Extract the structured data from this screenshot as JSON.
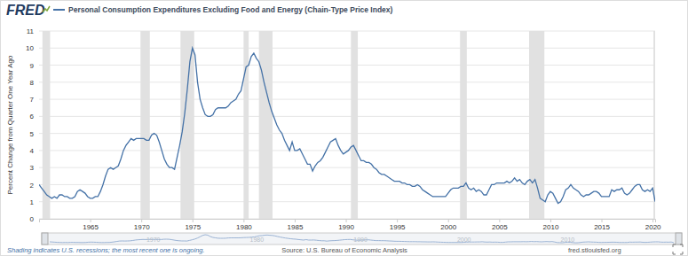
{
  "chart_data": {
    "type": "line",
    "logo": "FRED",
    "y_label": "Percent Change from Quarter One Year Ago",
    "x": [
      1960,
      1960.25,
      1960.5,
      1960.75,
      1961,
      1961.25,
      1961.5,
      1961.75,
      1962,
      1962.25,
      1962.5,
      1962.75,
      1963,
      1963.25,
      1963.5,
      1963.75,
      1964,
      1964.25,
      1964.5,
      1964.75,
      1965,
      1965.25,
      1965.5,
      1965.75,
      1966,
      1966.25,
      1966.5,
      1966.75,
      1967,
      1967.25,
      1967.5,
      1967.75,
      1968,
      1968.25,
      1968.5,
      1968.75,
      1969,
      1969.25,
      1969.5,
      1969.75,
      1970,
      1970.25,
      1970.5,
      1970.75,
      1971,
      1971.25,
      1971.5,
      1971.75,
      1972,
      1972.25,
      1972.5,
      1972.75,
      1973,
      1973.25,
      1973.5,
      1973.75,
      1974,
      1974.25,
      1974.5,
      1974.75,
      1975,
      1975.25,
      1975.5,
      1975.75,
      1976,
      1976.25,
      1976.5,
      1976.75,
      1977,
      1977.25,
      1977.5,
      1977.75,
      1978,
      1978.25,
      1978.5,
      1978.75,
      1979,
      1979.25,
      1979.5,
      1979.75,
      1980,
      1980.25,
      1980.5,
      1980.75,
      1981,
      1981.25,
      1981.5,
      1981.75,
      1982,
      1982.25,
      1982.5,
      1982.75,
      1983,
      1983.25,
      1983.5,
      1983.75,
      1984,
      1984.25,
      1984.5,
      1984.75,
      1985,
      1985.25,
      1985.5,
      1985.75,
      1986,
      1986.25,
      1986.5,
      1986.75,
      1987,
      1987.25,
      1987.5,
      1987.75,
      1988,
      1988.25,
      1988.5,
      1988.75,
      1989,
      1989.25,
      1989.5,
      1989.75,
      1990,
      1990.25,
      1990.5,
      1990.75,
      1991,
      1991.25,
      1991.5,
      1991.75,
      1992,
      1992.25,
      1992.5,
      1992.75,
      1993,
      1993.25,
      1993.5,
      1993.75,
      1994,
      1994.25,
      1994.5,
      1994.75,
      1995,
      1995.25,
      1995.5,
      1995.75,
      1996,
      1996.25,
      1996.5,
      1996.75,
      1997,
      1997.25,
      1997.5,
      1997.75,
      1998,
      1998.25,
      1998.5,
      1998.75,
      1999,
      1999.25,
      1999.5,
      1999.75,
      2000,
      2000.25,
      2000.5,
      2000.75,
      2001,
      2001.25,
      2001.5,
      2001.75,
      2002,
      2002.25,
      2002.5,
      2002.75,
      2003,
      2003.25,
      2003.5,
      2003.75,
      2004,
      2004.25,
      2004.5,
      2004.75,
      2005,
      2005.25,
      2005.5,
      2005.75,
      2006,
      2006.25,
      2006.5,
      2006.75,
      2007,
      2007.25,
      2007.5,
      2007.75,
      2008,
      2008.25,
      2008.5,
      2008.75,
      2009,
      2009.25,
      2009.5,
      2009.75,
      2010,
      2010.25,
      2010.5,
      2010.75,
      2011,
      2011.25,
      2011.5,
      2011.75,
      2012,
      2012.25,
      2012.5,
      2012.75,
      2013,
      2013.25,
      2013.5,
      2013.75,
      2014,
      2014.25,
      2014.5,
      2014.75,
      2015,
      2015.25,
      2015.5,
      2015.75,
      2016,
      2016.25,
      2016.5,
      2016.75,
      2017,
      2017.25,
      2017.5,
      2017.75,
      2018,
      2018.25,
      2018.5,
      2018.75,
      2019,
      2019.25,
      2019.5,
      2019.75,
      2020,
      2020.25
    ],
    "series": [
      {
        "name": "Personal Consumption Expenditures Excluding Food and Energy (Chain-Type Price Index)",
        "color": "#4572a7",
        "values": [
          2.0,
          1.8,
          1.6,
          1.4,
          1.3,
          1.2,
          1.3,
          1.2,
          1.4,
          1.4,
          1.3,
          1.3,
          1.2,
          1.2,
          1.3,
          1.6,
          1.7,
          1.6,
          1.5,
          1.3,
          1.2,
          1.2,
          1.3,
          1.3,
          1.6,
          2.0,
          2.5,
          2.9,
          3.0,
          2.9,
          3.0,
          3.1,
          3.5,
          4.0,
          4.3,
          4.5,
          4.7,
          4.6,
          4.7,
          4.7,
          4.7,
          4.7,
          4.6,
          4.6,
          4.9,
          5.0,
          4.9,
          4.5,
          4.0,
          3.5,
          3.2,
          3.0,
          3.0,
          2.9,
          3.6,
          4.3,
          5.1,
          6.2,
          7.6,
          9.2,
          10.0,
          9.6,
          8.0,
          7.0,
          6.5,
          6.1,
          6.0,
          6.0,
          6.1,
          6.4,
          6.5,
          6.5,
          6.5,
          6.5,
          6.6,
          6.8,
          6.9,
          7.0,
          7.3,
          7.5,
          8.2,
          8.9,
          9.0,
          9.5,
          9.7,
          9.4,
          9.2,
          8.7,
          8.0,
          7.4,
          6.8,
          6.3,
          5.9,
          5.5,
          5.2,
          5.0,
          4.6,
          4.3,
          4.0,
          4.5,
          4.0,
          4.0,
          4.1,
          3.8,
          3.5,
          3.2,
          3.2,
          2.8,
          3.1,
          3.3,
          3.4,
          3.6,
          3.9,
          4.2,
          4.5,
          4.6,
          4.7,
          4.3,
          4.0,
          3.8,
          3.9,
          4.0,
          4.2,
          4.3,
          4.0,
          3.7,
          3.4,
          3.4,
          3.3,
          3.3,
          3.2,
          3.0,
          2.9,
          2.7,
          2.6,
          2.6,
          2.5,
          2.4,
          2.3,
          2.2,
          2.2,
          2.2,
          2.1,
          2.1,
          2.0,
          2.0,
          1.9,
          1.9,
          2.0,
          1.9,
          1.7,
          1.6,
          1.5,
          1.4,
          1.3,
          1.3,
          1.3,
          1.3,
          1.3,
          1.3,
          1.5,
          1.7,
          1.8,
          1.8,
          1.8,
          1.9,
          1.9,
          2.1,
          1.8,
          1.7,
          1.8,
          1.6,
          1.7,
          1.6,
          1.4,
          1.4,
          1.7,
          2.0,
          2.0,
          2.1,
          2.1,
          2.1,
          2.1,
          2.2,
          2.1,
          2.2,
          2.4,
          2.2,
          2.3,
          2.1,
          2.0,
          2.2,
          2.3,
          2.1,
          2.3,
          1.8,
          1.2,
          1.1,
          1.0,
          1.4,
          1.6,
          1.5,
          1.2,
          0.9,
          1.0,
          1.3,
          1.7,
          1.8,
          2.0,
          1.8,
          1.7,
          1.6,
          1.4,
          1.3,
          1.4,
          1.4,
          1.5,
          1.6,
          1.6,
          1.5,
          1.3,
          1.3,
          1.3,
          1.3,
          1.7,
          1.6,
          1.7,
          1.7,
          1.8,
          1.5,
          1.4,
          1.5,
          1.7,
          1.9,
          2.0,
          2.0,
          1.7,
          1.6,
          1.7,
          1.6,
          1.8,
          1.0
        ]
      }
    ],
    "xlim": [
      1960,
      2020.25
    ],
    "xticks": [
      1965,
      1970,
      1975,
      1980,
      1985,
      1990,
      1995,
      2000,
      2005,
      2010,
      2015,
      2020
    ],
    "ylim": [
      0,
      11
    ],
    "yticks": [
      0,
      1,
      2,
      3,
      4,
      5,
      6,
      7,
      8,
      9,
      10,
      11
    ],
    "grid": true,
    "recessions": [
      [
        1960.33,
        1961.08
      ],
      [
        1969.92,
        1970.83
      ],
      [
        1973.83,
        1975.17
      ],
      [
        1980.0,
        1980.5
      ],
      [
        1981.5,
        1982.83
      ],
      [
        1990.5,
        1991.17
      ],
      [
        2001.17,
        2001.83
      ],
      [
        2007.92,
        2009.42
      ],
      [
        2020.08,
        2020.25
      ]
    ],
    "navigator_xticks": [
      1970,
      1980,
      1990,
      2000,
      2010
    ],
    "note": "Shading indicates U.S. recessions; the most recent one is ongoing.",
    "source": "Source: U.S. Bureau of Economic Analysis",
    "site": "fred.stlouisfed.org"
  }
}
